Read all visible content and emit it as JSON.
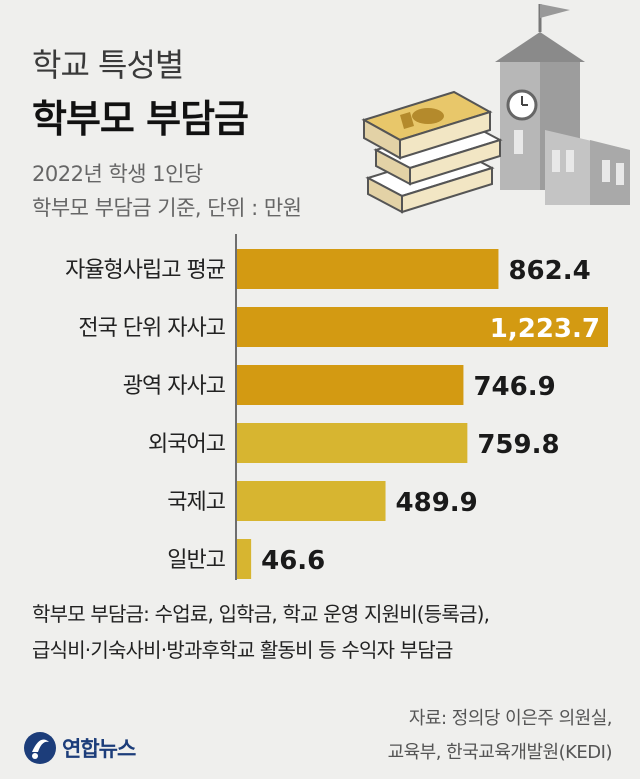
{
  "header": {
    "title_line1": "학교 특성별",
    "title_line2": "학부모 부담금",
    "subtitle_line1": "2022년 학생 1인당",
    "subtitle_line2": "학부모 부담금 기준, 단위 : 만원"
  },
  "colors": {
    "dark_bar": "#d39a12",
    "light_bar": "#d7b530",
    "value_text": "#1a1a1a",
    "highlight_value_text": "#ffffff",
    "axis": "#444444"
  },
  "chart_data": {
    "type": "bar",
    "orientation": "horizontal",
    "categories": [
      "자율형사립고 평균",
      "전국 단위 자사고",
      "광역 자사고",
      "외국어고",
      "국제고",
      "일반고"
    ],
    "values": [
      862.4,
      1223.7,
      746.9,
      759.8,
      489.9,
      46.6
    ],
    "value_labels": [
      "862.4",
      "1,223.7",
      "746.9",
      "759.8",
      "489.9",
      "46.6"
    ],
    "bar_colors": [
      "dark",
      "dark",
      "dark",
      "light",
      "light",
      "light"
    ],
    "label_inside": [
      false,
      true,
      false,
      false,
      false,
      false
    ],
    "xlim": [
      0,
      1223.7
    ],
    "grid": false,
    "legend": "none"
  },
  "footnote": {
    "line1": "학부모 부담금: 수업료, 입학금, 학교 운영 지원비(등록금),",
    "line2": "급식비·기숙사비·방과후학교 활동비 등 수익자 부담금"
  },
  "source": {
    "line1": "자료: 정의당 이은주 의원실,",
    "line2": "교육부, 한국교육개발원(KEDI)"
  },
  "logo": {
    "text": "연합뉴스",
    "icon": "yonhap-logo-icon"
  },
  "illustration": {
    "icons": [
      "money-stack-icon",
      "school-building-icon",
      "flag-icon",
      "clock-icon"
    ]
  }
}
